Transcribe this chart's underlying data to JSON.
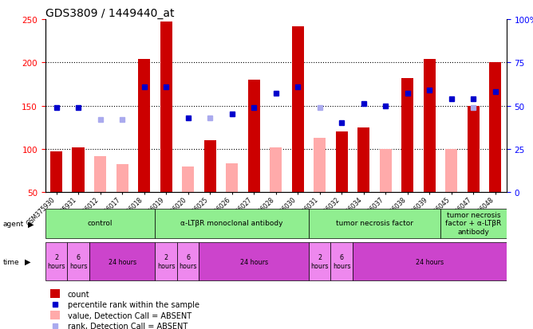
{
  "title": "GDS3809 / 1449440_at",
  "samples": [
    "GSM375930",
    "GSM375931",
    "GSM376012",
    "GSM376017",
    "GSM376018",
    "GSM376019",
    "GSM376020",
    "GSM376025",
    "GSM376026",
    "GSM376027",
    "GSM376028",
    "GSM376030",
    "GSM376031",
    "GSM376032",
    "GSM376034",
    "GSM376037",
    "GSM376038",
    "GSM376039",
    "GSM376045",
    "GSM376047",
    "GSM376048"
  ],
  "count_values": [
    97,
    102,
    null,
    null,
    204,
    247,
    null,
    110,
    null,
    180,
    null,
    242,
    null,
    120,
    125,
    null,
    182,
    204,
    null,
    150,
    200
  ],
  "count_absent": [
    null,
    null,
    92,
    82,
    null,
    null,
    80,
    null,
    83,
    null,
    102,
    null,
    113,
    null,
    null,
    100,
    null,
    null,
    100,
    null,
    null
  ],
  "rank_present": [
    49,
    49,
    null,
    null,
    61,
    61,
    43,
    null,
    45,
    49,
    57,
    61,
    null,
    40,
    51,
    50,
    57,
    59,
    54,
    54,
    58
  ],
  "rank_absent": [
    null,
    null,
    42,
    42,
    null,
    null,
    null,
    43,
    null,
    null,
    null,
    null,
    49,
    null,
    null,
    null,
    null,
    null,
    null,
    49,
    null
  ],
  "ylim_left": [
    50,
    250
  ],
  "ylim_right": [
    0,
    100
  ],
  "yticks_left": [
    50,
    100,
    150,
    200,
    250
  ],
  "yticks_right": [
    0,
    25,
    50,
    75,
    100
  ],
  "ytick_labels_right": [
    "0",
    "25",
    "50",
    "75",
    "100%"
  ],
  "agent_groups": [
    {
      "label": "control",
      "start": 0,
      "end": 4
    },
    {
      "label": "α-LTβR monoclonal antibody",
      "start": 5,
      "end": 11
    },
    {
      "label": "tumor necrosis factor",
      "start": 12,
      "end": 17
    },
    {
      "label": "tumor necrosis\nfactor + α-LTβR\nantibody",
      "start": 18,
      "end": 20
    }
  ],
  "time_groups": [
    {
      "label": "2\nhours",
      "start": 0,
      "end": 0,
      "short": true
    },
    {
      "label": "6\nhours",
      "start": 1,
      "end": 1,
      "short": true
    },
    {
      "label": "24 hours",
      "start": 2,
      "end": 4,
      "short": false
    },
    {
      "label": "2\nhours",
      "start": 5,
      "end": 5,
      "short": true
    },
    {
      "label": "6\nhours",
      "start": 6,
      "end": 6,
      "short": true
    },
    {
      "label": "24 hours",
      "start": 7,
      "end": 11,
      "short": false
    },
    {
      "label": "2\nhours",
      "start": 12,
      "end": 12,
      "short": true
    },
    {
      "label": "6\nhours",
      "start": 13,
      "end": 13,
      "short": true
    },
    {
      "label": "24 hours",
      "start": 14,
      "end": 20,
      "short": false
    }
  ],
  "bar_color_present": "#cc0000",
  "bar_color_absent": "#ffaaaa",
  "rank_color_present": "#0000cc",
  "rank_color_absent": "#aaaaee",
  "bar_width": 0.55,
  "rank_marker_size": 5,
  "agent_color": "#90EE90",
  "time_color_short": "#ee88ee",
  "time_color_long": "#cc44cc",
  "grid_yticks": [
    100,
    150,
    200
  ]
}
